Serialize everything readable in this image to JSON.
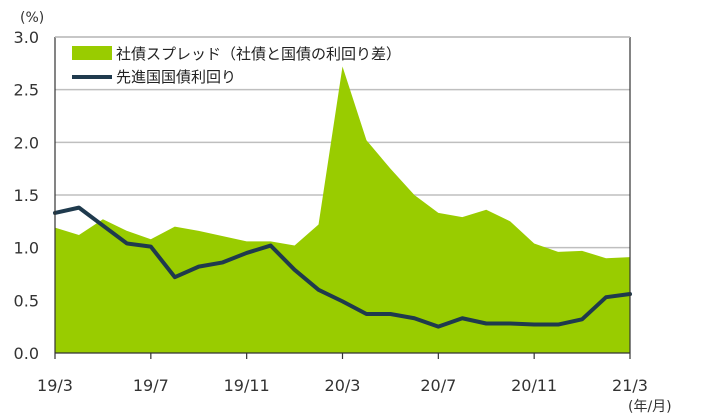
{
  "colors": {
    "spread_fill": "#99CC00",
    "yield_line": "#1F3A4D",
    "grid": "#BFBFBF",
    "axis": "#333333"
  },
  "chart_data": {
    "type": "area",
    "y_unit_label": "(%)",
    "x_unit_label": "(年/月)",
    "ylim": [
      0,
      3.0
    ],
    "yticks": [
      "0.0",
      "0.5",
      "1.0",
      "1.5",
      "2.0",
      "2.5",
      "3.0"
    ],
    "xticks": [
      {
        "index": 0,
        "label": "19/3"
      },
      {
        "index": 4,
        "label": "19/7"
      },
      {
        "index": 8,
        "label": "19/11"
      },
      {
        "index": 12,
        "label": "20/3"
      },
      {
        "index": 16,
        "label": "20/7"
      },
      {
        "index": 20,
        "label": "20/11"
      },
      {
        "index": 24,
        "label": "21/3"
      }
    ],
    "grid": "horizontal",
    "legend_position": "top-left",
    "x": [
      "19/3",
      "19/4",
      "19/5",
      "19/6",
      "19/7",
      "19/8",
      "19/9",
      "19/10",
      "19/11",
      "19/12",
      "20/1",
      "20/2",
      "20/3",
      "20/4",
      "20/5",
      "20/6",
      "20/7",
      "20/8",
      "20/9",
      "20/10",
      "20/11",
      "20/12",
      "21/1",
      "21/2",
      "21/3"
    ],
    "series": [
      {
        "name": "社債スプレッド（社債と国債の利回り差）",
        "type": "area",
        "values": [
          1.19,
          1.12,
          1.27,
          1.16,
          1.08,
          1.2,
          1.16,
          1.11,
          1.06,
          1.06,
          1.02,
          1.22,
          2.72,
          2.02,
          1.75,
          1.5,
          1.33,
          1.29,
          1.36,
          1.25,
          1.04,
          0.96,
          0.97,
          0.9,
          0.91
        ]
      },
      {
        "name": "先進国国債利回り",
        "type": "line",
        "values": [
          1.33,
          1.38,
          1.21,
          1.04,
          1.01,
          0.72,
          0.82,
          0.86,
          0.95,
          1.02,
          0.79,
          0.6,
          0.49,
          0.37,
          0.37,
          0.33,
          0.25,
          0.33,
          0.28,
          0.28,
          0.27,
          0.27,
          0.32,
          0.53,
          0.56
        ]
      }
    ]
  }
}
